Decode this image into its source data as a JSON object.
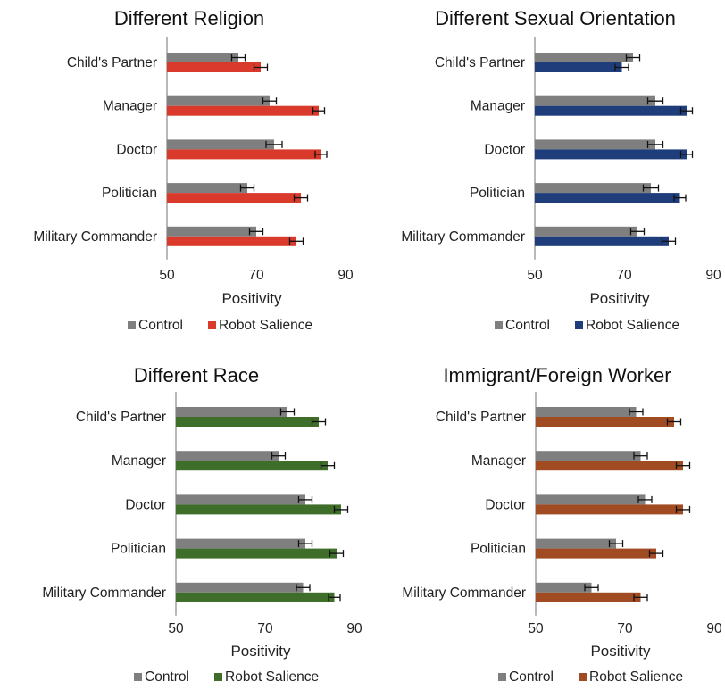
{
  "colors": {
    "control": "#7f7f7f",
    "axis": "#8a8a8a",
    "errorbar": "#111111"
  },
  "chart_data": [
    {
      "type": "bar",
      "orientation": "horizontal",
      "title": "Different Religion",
      "categories": [
        "Child's Partner",
        "Manager",
        "Doctor",
        "Politician",
        "Military Commander"
      ],
      "xlabel": "Positivity",
      "xlim": [
        50,
        90
      ],
      "xticks": [
        "50",
        "70",
        "90"
      ],
      "legend_position": "bottom",
      "series": [
        {
          "name": "Control",
          "color": "#7f7f7f",
          "values": [
            66,
            73,
            74,
            68,
            70
          ],
          "errors": [
            1.5,
            1.5,
            1.8,
            1.5,
            1.5
          ]
        },
        {
          "name": "Robot Salience",
          "color": "#d93a2b",
          "values": [
            71,
            84,
            84.5,
            80,
            79
          ],
          "errors": [
            1.5,
            1.3,
            1.3,
            1.5,
            1.5
          ]
        }
      ]
    },
    {
      "type": "bar",
      "orientation": "horizontal",
      "title": "Different Sexual Orientation",
      "categories": [
        "Child's Partner",
        "Manager",
        "Doctor",
        "Politician",
        "Military Commander"
      ],
      "xlabel": "Positivity",
      "xlim": [
        50,
        90
      ],
      "xticks": [
        "50",
        "70",
        "90"
      ],
      "legend_position": "bottom",
      "series": [
        {
          "name": "Control",
          "color": "#7f7f7f",
          "values": [
            72,
            77,
            77,
            76,
            73
          ],
          "errors": [
            1.5,
            1.7,
            1.7,
            1.7,
            1.5
          ]
        },
        {
          "name": "Robot Salience",
          "color": "#1e3d7a",
          "values": [
            69.5,
            84,
            84,
            82.5,
            80
          ],
          "errors": [
            1.5,
            1.3,
            1.3,
            1.3,
            1.5
          ]
        }
      ]
    },
    {
      "type": "bar",
      "orientation": "horizontal",
      "title": "Different Race",
      "categories": [
        "Child's Partner",
        "Manager",
        "Doctor",
        "Politician",
        "Military Commander"
      ],
      "xlabel": "Positivity",
      "xlim": [
        50,
        90
      ],
      "xticks": [
        "50",
        "70",
        "90"
      ],
      "legend_position": "bottom",
      "series": [
        {
          "name": "Control",
          "color": "#7f7f7f",
          "values": [
            75,
            73,
            79,
            79,
            78.5
          ],
          "errors": [
            1.5,
            1.5,
            1.5,
            1.5,
            1.5
          ]
        },
        {
          "name": "Robot Salience",
          "color": "#3f6e2a",
          "values": [
            82,
            84,
            87,
            86,
            85.5
          ],
          "errors": [
            1.5,
            1.5,
            1.5,
            1.5,
            1.3
          ]
        }
      ]
    },
    {
      "type": "bar",
      "orientation": "horizontal",
      "title": "Immigrant/Foreign Worker",
      "categories": [
        "Child's Partner",
        "Manager",
        "Doctor",
        "Politician",
        "Military Commander"
      ],
      "xlabel": "Positivity",
      "xlim": [
        50,
        90
      ],
      "xticks": [
        "50",
        "70",
        "90"
      ],
      "legend_position": "bottom",
      "series": [
        {
          "name": "Control",
          "color": "#7f7f7f",
          "values": [
            72.5,
            73.5,
            74.5,
            68,
            62.5
          ],
          "errors": [
            1.5,
            1.5,
            1.5,
            1.5,
            1.5
          ]
        },
        {
          "name": "Robot Salience",
          "color": "#a14b23",
          "values": [
            81,
            83,
            83,
            77,
            73.5
          ],
          "errors": [
            1.5,
            1.5,
            1.5,
            1.5,
            1.5
          ]
        }
      ]
    }
  ]
}
